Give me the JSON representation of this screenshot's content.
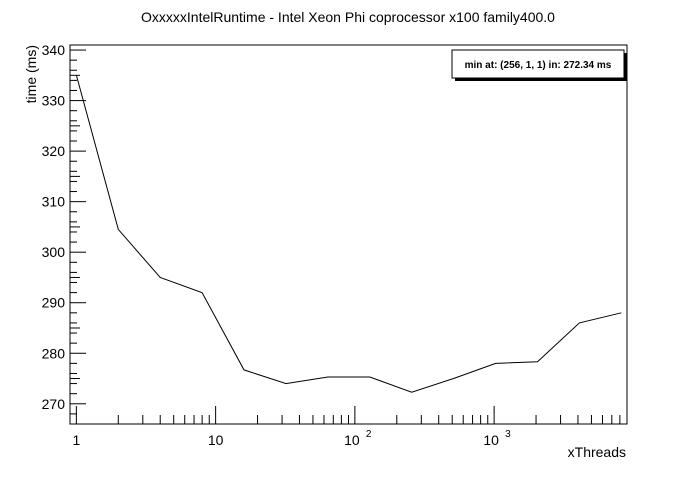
{
  "chart_data": {
    "type": "line",
    "title": "OxxxxxIntelRuntime - Intel Xeon Phi coprocessor x100 family400.0",
    "xlabel": "xThreads",
    "ylabel": "time (ms)",
    "x_scale": "log",
    "xlim": [
      0.9,
      9000
    ],
    "ylim": [
      266,
      341
    ],
    "grid": false,
    "x_tick_labels": [
      "1",
      "10",
      "10",
      "10"
    ],
    "x_tick_exponents": [
      "",
      "",
      "2",
      "3"
    ],
    "x_major_ticks": [
      1,
      10,
      100,
      1000
    ],
    "y_ticks": [
      270,
      280,
      290,
      300,
      310,
      320,
      330,
      340
    ],
    "series": [
      {
        "x": [
          1,
          2,
          4,
          8,
          16,
          32,
          64,
          128,
          256,
          512,
          1024,
          2048,
          4096,
          8192
        ],
        "values": [
          335.0,
          304.5,
          295.0,
          292.0,
          276.7,
          274.0,
          275.3,
          275.3,
          272.3,
          275.0,
          278.0,
          278.3,
          286.0,
          288.0
        ]
      }
    ],
    "annotation": {
      "text": "min at: (256, 1, 1) in: 272.34 ms",
      "placement": "top-right"
    }
  }
}
